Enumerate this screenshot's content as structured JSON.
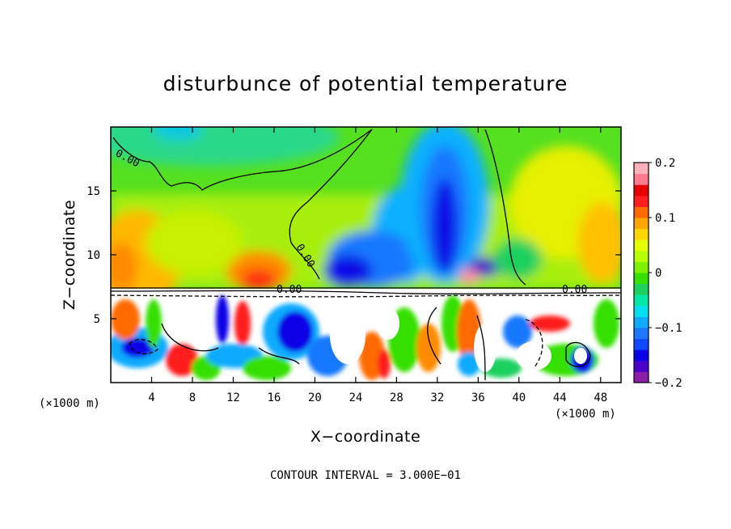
{
  "chart_data": {
    "type": "heatmap",
    "title": "disturbunce of potential temperature",
    "xlabel": "X−coordinate",
    "ylabel": "Z−coordinate",
    "x_unit_left": "(×1000 m)",
    "x_unit_right": "(×1000 m)",
    "xlim": [
      0,
      50
    ],
    "ylim": [
      0,
      20
    ],
    "xticks": [
      4,
      8,
      12,
      16,
      20,
      24,
      28,
      32,
      36,
      40,
      44,
      48
    ],
    "yticks": [
      5,
      10,
      15
    ],
    "colorbar": {
      "range": [
        -0.2,
        0.2
      ],
      "tick_labels": [
        {
          "value": 0.2,
          "label": "0.2"
        },
        {
          "value": 0.1,
          "label": "0.1"
        },
        {
          "value": 0.0,
          "label": "0"
        },
        {
          "value": -0.1,
          "label": "−0.1"
        },
        {
          "value": -0.2,
          "label": "−0.2"
        }
      ],
      "colors": [
        "#8b1fa8",
        "#4a00c8",
        "#0a00e6",
        "#1048ff",
        "#1e78ff",
        "#10aaff",
        "#00e0f0",
        "#00e8a8",
        "#1fd060",
        "#36e000",
        "#7ff000",
        "#b8ff00",
        "#e6ff00",
        "#ffd700",
        "#ffa500",
        "#ff6a00",
        "#ff1e1e",
        "#e60000",
        "#ff7a8c",
        "#ffb0b8"
      ]
    },
    "contour_labels": [
      {
        "text": "0.00",
        "x": 1.6,
        "y": 18.3
      },
      {
        "text": "0.00",
        "x": 15.5,
        "y": 10.4
      },
      {
        "text": "0.00",
        "x": 17.8,
        "y": 7.4
      },
      {
        "text": "0.00",
        "x": 45.5,
        "y": 7.4
      }
    ],
    "note": "CONTOUR INTERVAL = 3.000E−01"
  }
}
